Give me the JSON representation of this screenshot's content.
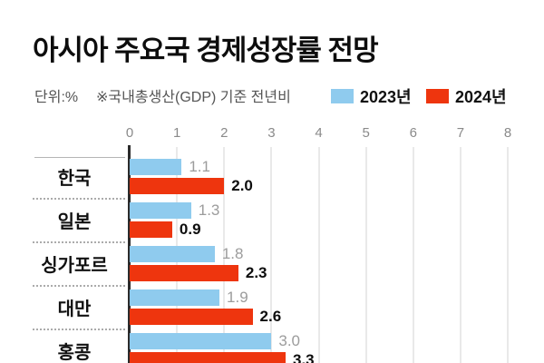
{
  "title": "아시아 주요국 경제성장률 전망",
  "subtitle": {
    "unit": "단위:%",
    "note": "※국내총생산(GDP) 기준 전년비"
  },
  "legend": [
    {
      "label": "2023년",
      "color": "#8FCBEE"
    },
    {
      "label": "2024년",
      "color": "#EE350E"
    }
  ],
  "colors": {
    "bar_2023": "#8FCBEE",
    "bar_2024": "#EE350E",
    "value_label_2023": "#9c9c9c",
    "value_label_2024": "#0d0d0d",
    "axis_line": "#2b2b2b",
    "gridline": "#e9e9e9",
    "tick_label": "#8a8a8a",
    "title_text": "#0d0d0d",
    "subtitle_text": "#555555"
  },
  "chart_data": {
    "type": "bar",
    "orientation": "horizontal",
    "title": "아시아 주요국 경제성장률 전망",
    "unit": "%",
    "note": "국내총생산(GDP) 기준 전년비",
    "categories": [
      "한국",
      "일본",
      "싱가포르",
      "대만",
      "홍콩"
    ],
    "series": [
      {
        "name": "2023년",
        "color": "#8FCBEE",
        "values": [
          1.1,
          1.3,
          1.8,
          1.9,
          3.0
        ]
      },
      {
        "name": "2024년",
        "color": "#EE350E",
        "values": [
          2.0,
          0.9,
          2.3,
          2.6,
          3.3
        ]
      }
    ],
    "xlim": [
      0,
      8
    ],
    "xticks": [
      0,
      1,
      2,
      3,
      4,
      5,
      6,
      7,
      8
    ],
    "grid": true,
    "value_labels": true,
    "value_label_format": "0.0",
    "legend_position": "top-right",
    "clipped_bottom": true
  }
}
